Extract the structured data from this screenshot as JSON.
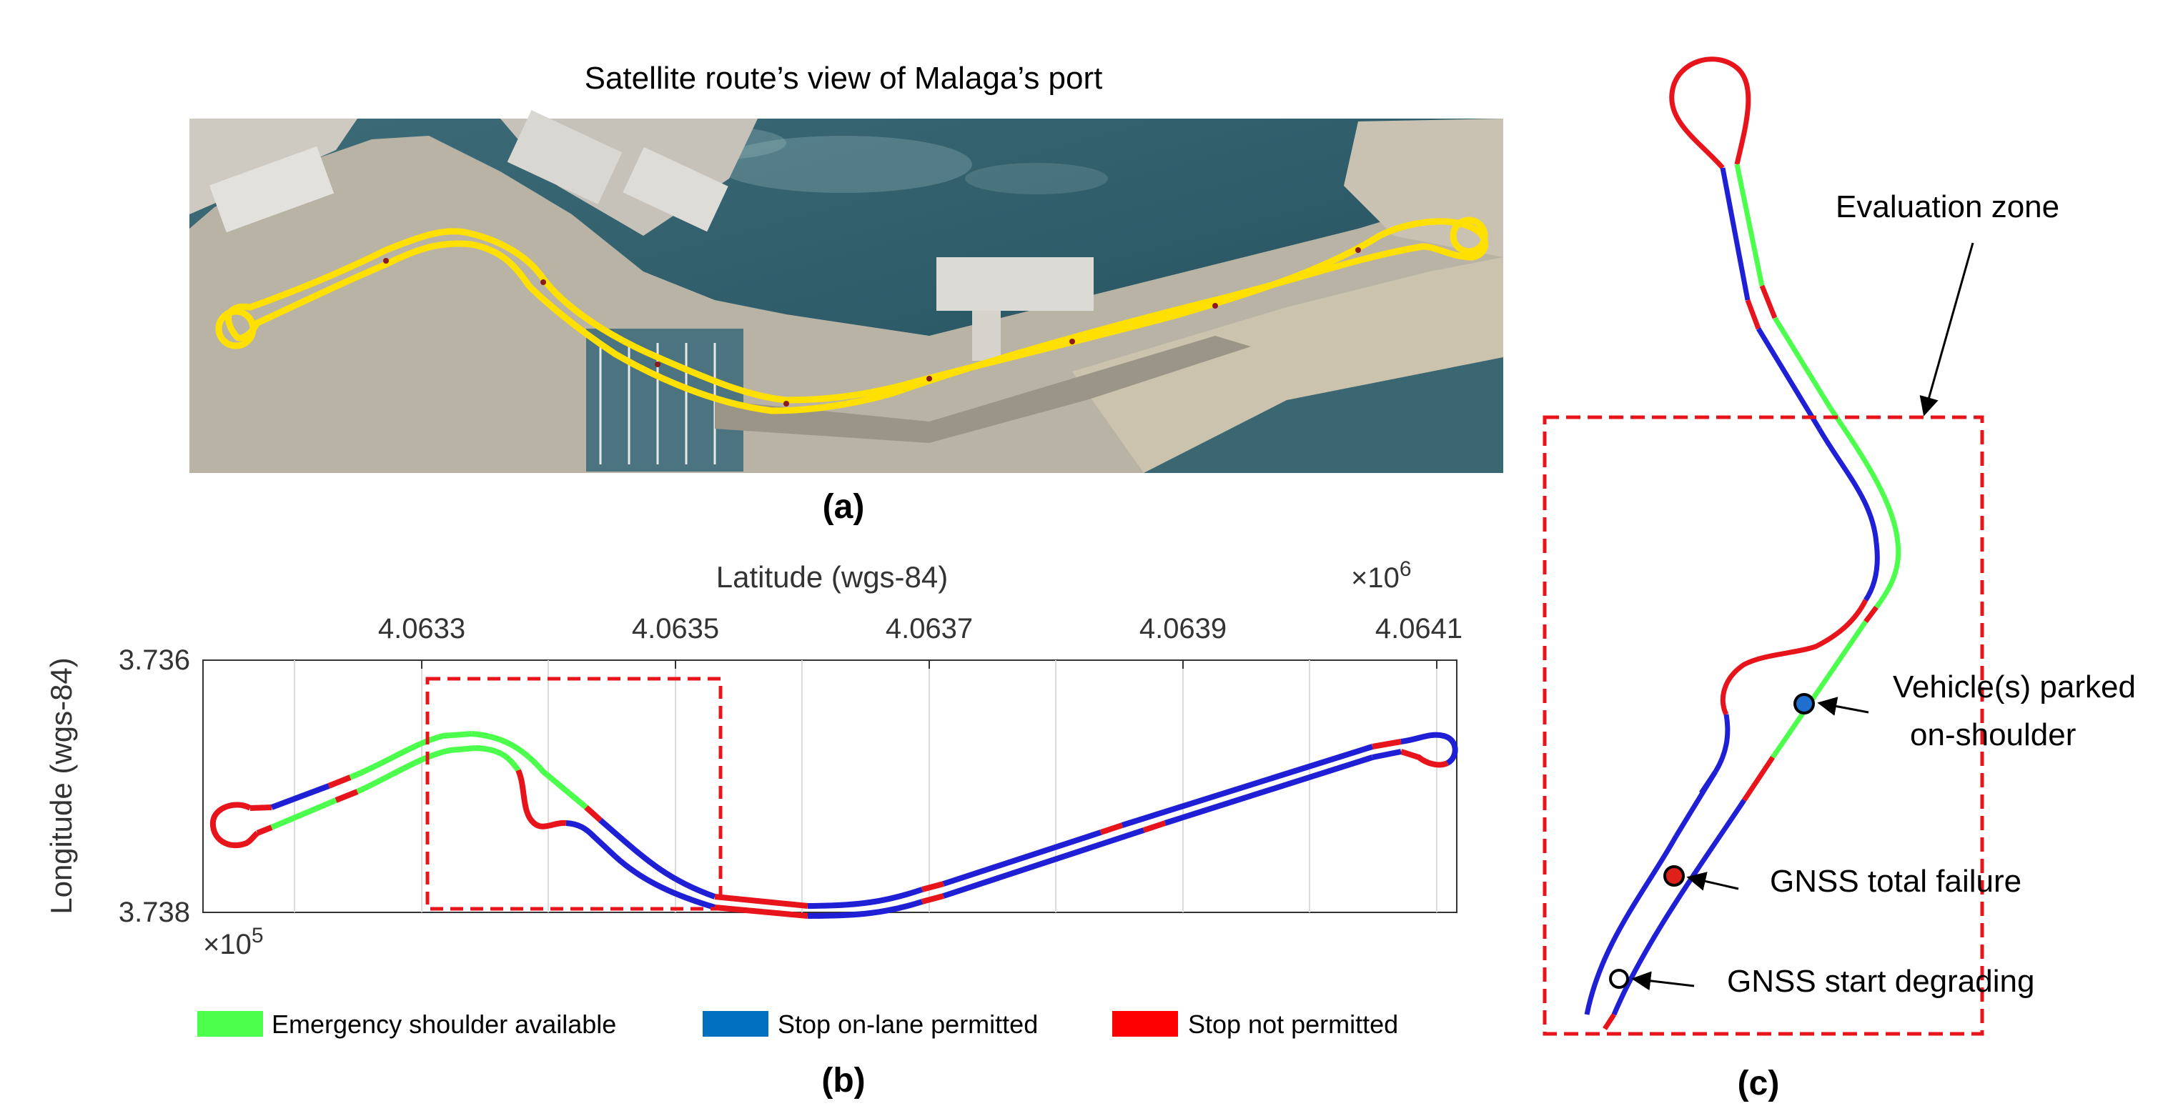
{
  "panel_a": {
    "title": "Satellite route’s view of Malaga’s port",
    "label": "(a)",
    "image": "satellite-photo"
  },
  "panel_b": {
    "label": "(b)",
    "x_axis_title": "Latitude (wgs-84)",
    "x_multiplier": "×10",
    "x_exponent": "6",
    "x_ticks": [
      "4.0633",
      "4.0635",
      "4.0637",
      "4.0639",
      "4.0641"
    ],
    "y_axis_title": "Longitude (wgs-84)",
    "y_ticks": [
      "3.736",
      "3.738"
    ],
    "y_multiplier": "×10",
    "y_exponent": "5",
    "legend": [
      {
        "label": "Emergency shoulder available",
        "color": "#4dff4d"
      },
      {
        "label": "Stop on-lane permitted",
        "color": "#0070c0"
      },
      {
        "label": "Stop not permitted",
        "color": "#ff0000"
      }
    ]
  },
  "panel_c": {
    "label": "(c)",
    "zone_label": "Evaluation zone",
    "events": [
      {
        "label_line1": "Vehicle(s) parked",
        "label_line2": "on-shoulder",
        "color": "#1f6fd1"
      },
      {
        "label_line1": "GNSS total failure",
        "label_line2": "",
        "color": "#e0201b"
      },
      {
        "label_line1": "GNSS start degrading",
        "label_line2": "",
        "color": "#ffffff"
      }
    ]
  },
  "colors": {
    "shoulder": "#4dff4d",
    "on_lane": "#1f1fd6",
    "not_permitted": "#e8141b",
    "route_overlay": "#ffe000",
    "zone_box": "#e8141b"
  }
}
